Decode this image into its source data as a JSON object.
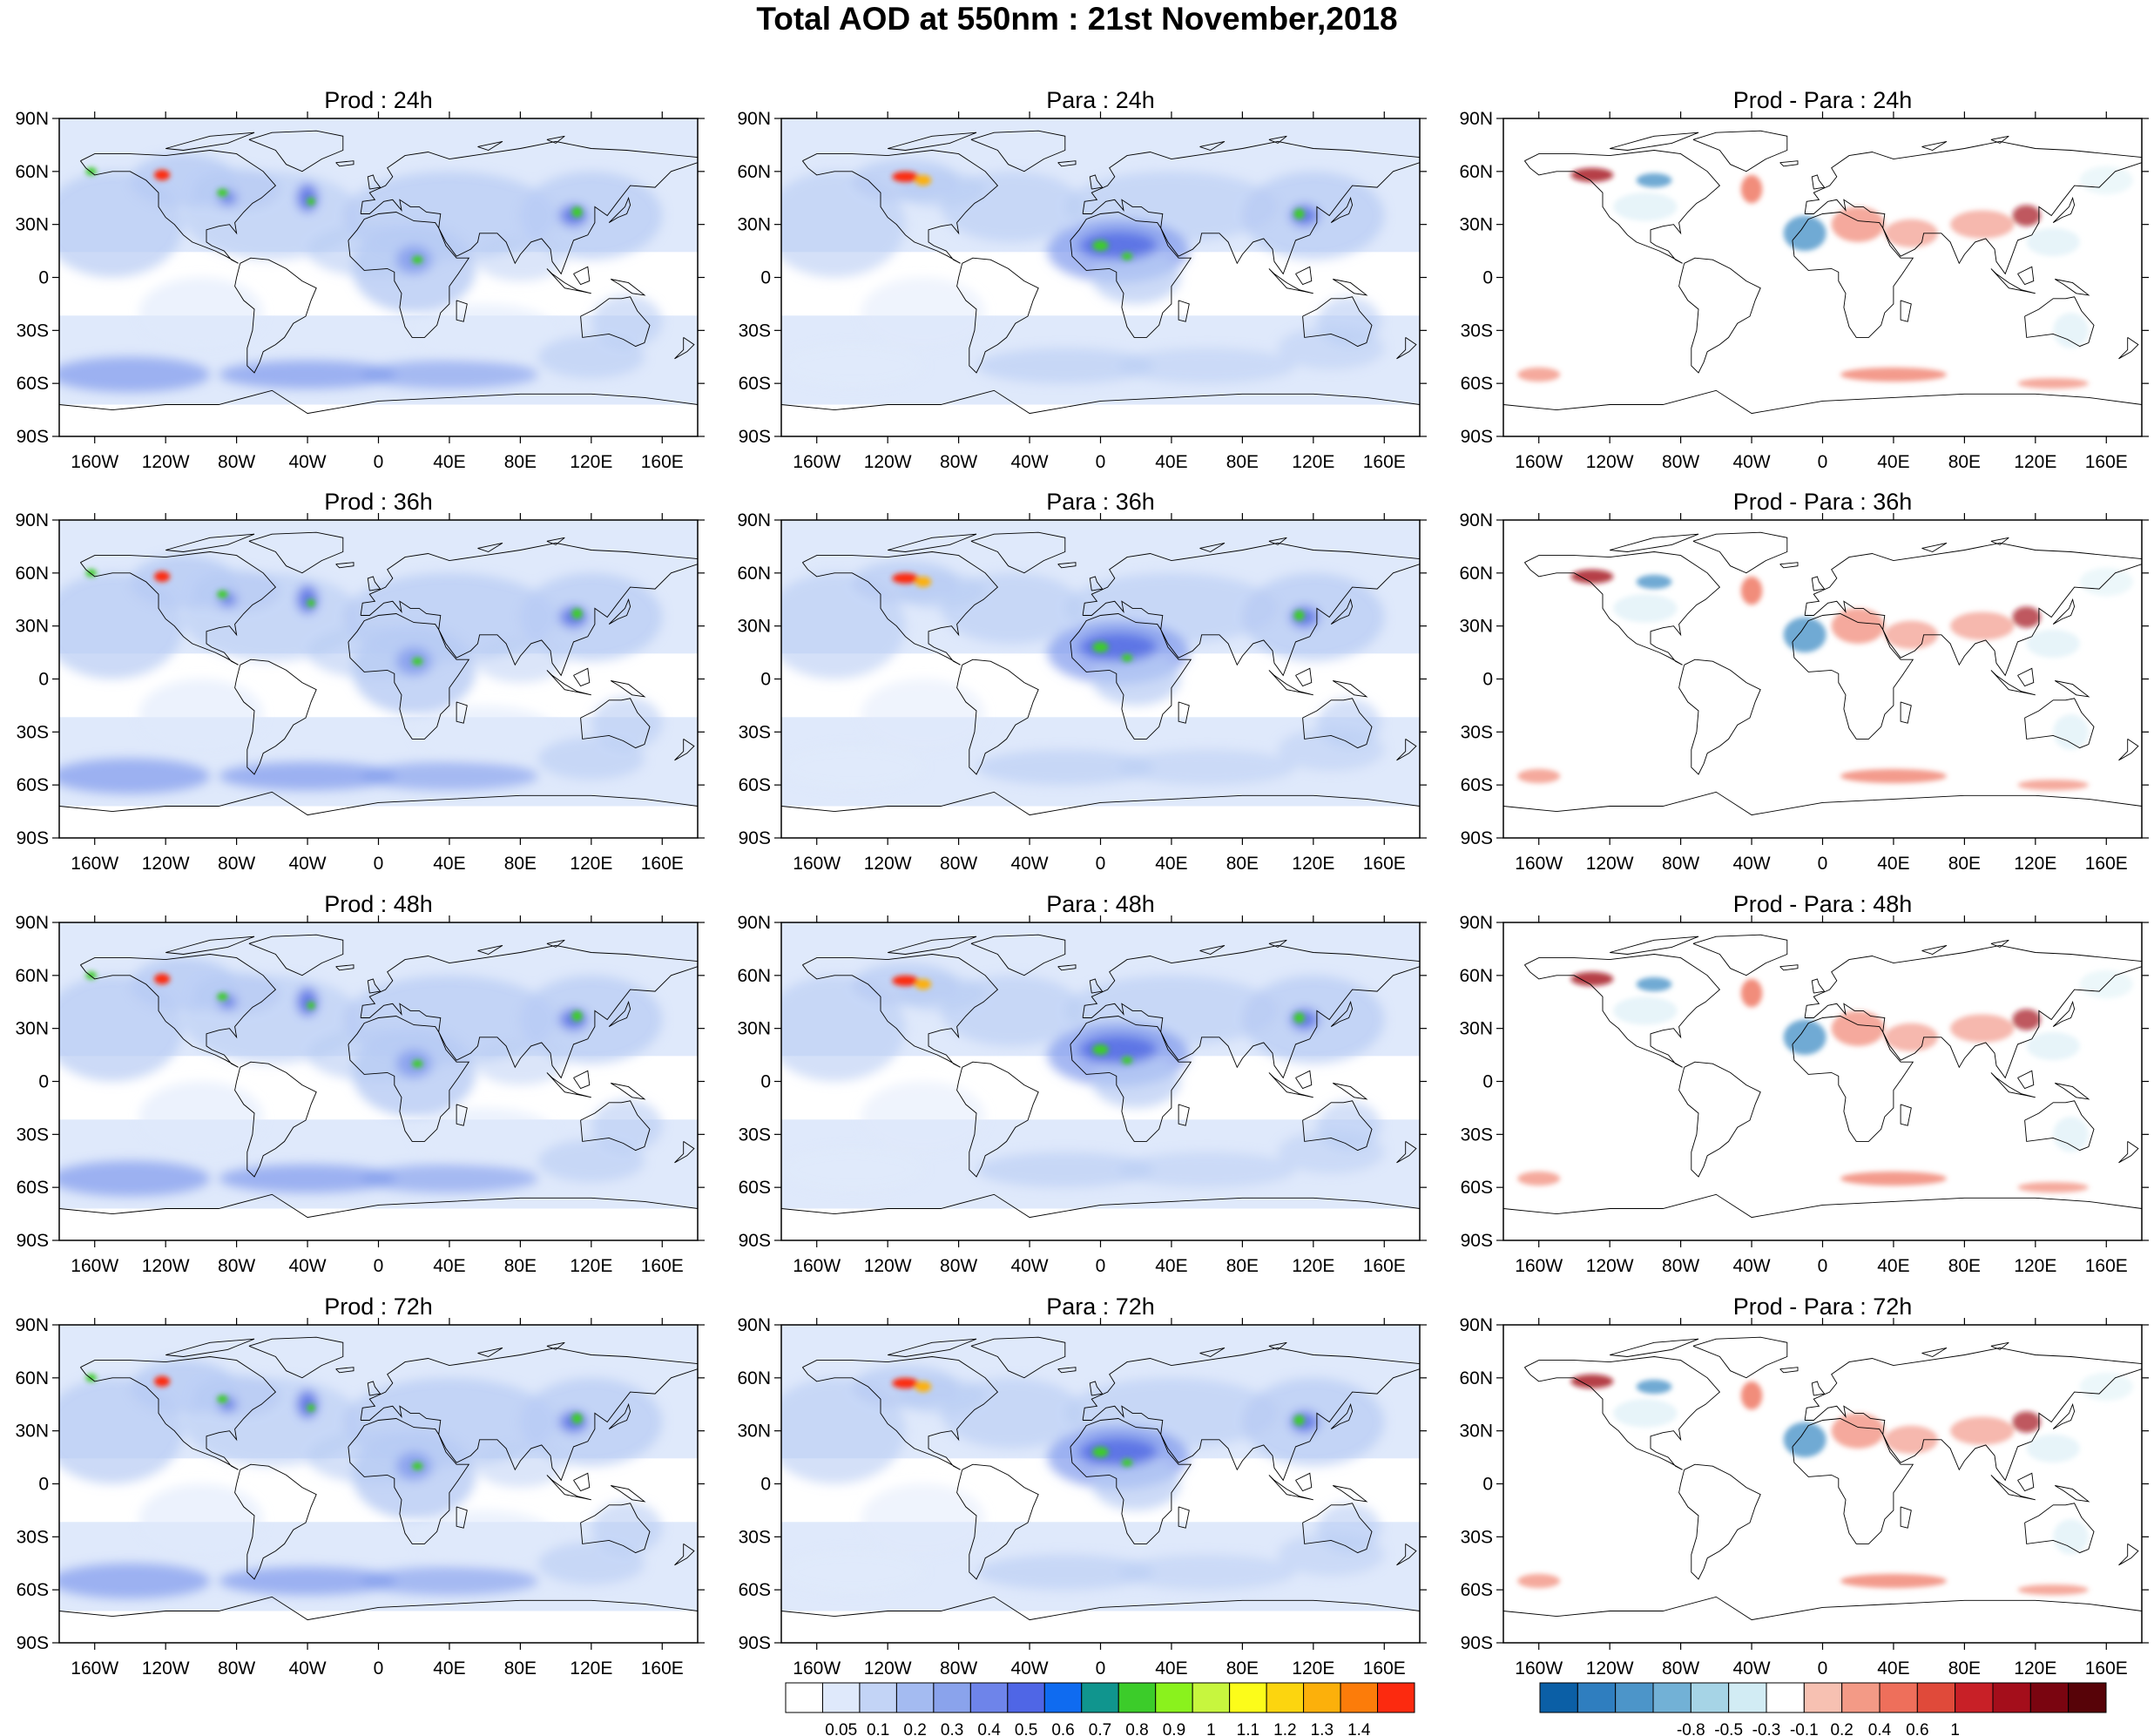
{
  "title": "Total AOD at 550nm : 21st November,2018",
  "lat_labels": [
    "90N",
    "60N",
    "30N",
    "0",
    "30S",
    "60S",
    "90S"
  ],
  "lon_labels": [
    "160W",
    "120W",
    "80W",
    "40W",
    "0",
    "40E",
    "80E",
    "120E",
    "160E"
  ],
  "panels": [
    {
      "title": "Prod : 24h",
      "type": "prod"
    },
    {
      "title": "Para : 24h",
      "type": "para"
    },
    {
      "title": "Prod - Para : 24h",
      "type": "diff"
    },
    {
      "title": "Prod : 36h",
      "type": "prod"
    },
    {
      "title": "Para : 36h",
      "type": "para"
    },
    {
      "title": "Prod - Para : 36h",
      "type": "diff"
    },
    {
      "title": "Prod : 48h",
      "type": "prod"
    },
    {
      "title": "Para : 48h",
      "type": "para"
    },
    {
      "title": "Prod - Para : 48h",
      "type": "diff"
    },
    {
      "title": "Prod : 72h",
      "type": "prod"
    },
    {
      "title": "Para : 72h",
      "type": "para"
    },
    {
      "title": "Prod - Para : 72h",
      "type": "diff"
    }
  ],
  "aod_colorbar": {
    "labels": [
      "0.05",
      "0.1",
      "0.2",
      "0.3",
      "0.4",
      "0.5",
      "0.6",
      "0.7",
      "0.8",
      "0.9",
      "1",
      "1.1",
      "1.2",
      "1.3",
      "1.4"
    ],
    "colors": [
      "#ffffff",
      "#dfe9fb",
      "#c3d4f6",
      "#a4bbf1",
      "#8aa3ec",
      "#6e84ea",
      "#4f66e6",
      "#0f6bf0",
      "#10958e",
      "#3ccc2a",
      "#8af21d",
      "#c7f63e",
      "#fcfc1a",
      "#fcd50f",
      "#fcb00b",
      "#fc7c0a",
      "#fc2a0f"
    ]
  },
  "diff_colorbar": {
    "labels": [
      "-0.8",
      "-0.5",
      "-0.3",
      "-0.1",
      "0.2",
      "0.4",
      "0.6",
      "1"
    ],
    "colors": [
      "#0b5fa6",
      "#2f7ebf",
      "#4c95c9",
      "#72b1d6",
      "#a6d4e6",
      "#d2ecf4",
      "#ffffff",
      "#f7c1b2",
      "#f39a86",
      "#ee6f5b",
      "#e04a3a",
      "#c82027",
      "#a40e1b",
      "#7a0510",
      "#570308"
    ]
  },
  "field_colors": {
    "light": "#dfe9fb",
    "mid": "#b7cbf4",
    "blue": "#7f99ec",
    "deep": "#4e66e2",
    "green": "#3ccc2a",
    "red": "#fc2a0f",
    "orange": "#fcb00b",
    "diff_red": "#ee6f5b",
    "diff_darkred": "#a40e1b",
    "diff_blue": "#4c95c9",
    "diff_lightblue": "#cfeaf3"
  }
}
